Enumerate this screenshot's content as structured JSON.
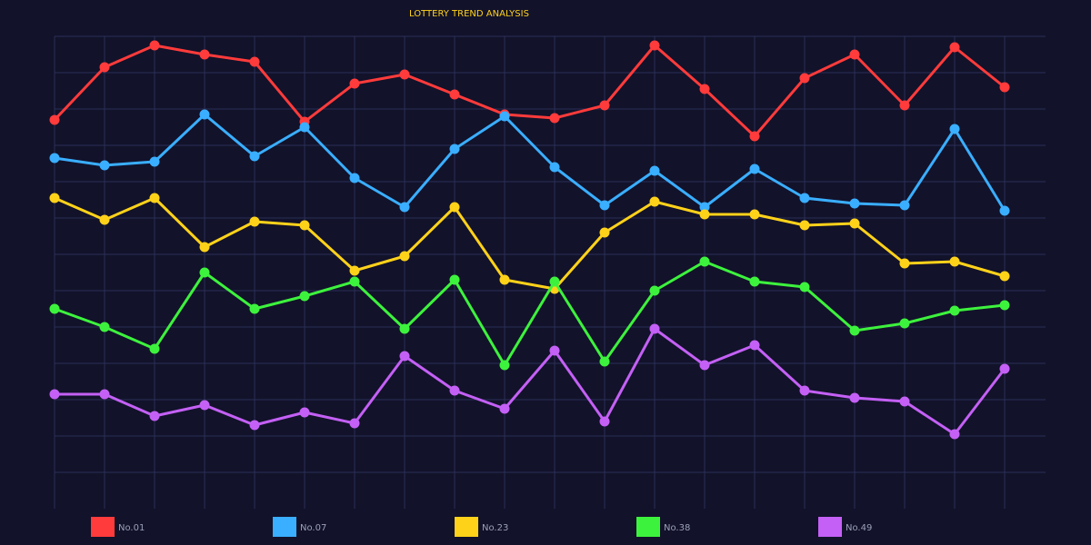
{
  "chart_data": {
    "type": "line",
    "title": "LOTTERY TREND ANALYSIS",
    "xlabel": "",
    "ylabel": "",
    "grid": true,
    "legend_position": "bottom",
    "x": [
      1,
      2,
      3,
      4,
      5,
      6,
      7,
      8,
      9,
      10,
      11,
      12,
      13,
      14,
      15,
      16,
      17,
      18,
      19,
      20
    ],
    "ylim": [
      0,
      13
    ],
    "series": [
      {
        "name": "No.01",
        "color": "#ff3b3b",
        "values": [
          10.7,
          12.15,
          12.75,
          12.5,
          12.3,
          10.65,
          11.7,
          11.95,
          11.4,
          10.85,
          10.75,
          11.1,
          12.75,
          11.55,
          10.25,
          11.85,
          12.5,
          11.1,
          12.7,
          11.6
        ]
      },
      {
        "name": "No.07",
        "color": "#3aaeff",
        "values": [
          9.65,
          9.45,
          9.55,
          10.85,
          9.7,
          10.5,
          9.1,
          8.3,
          9.9,
          10.8,
          9.4,
          8.35,
          9.3,
          8.3,
          9.35,
          8.55,
          8.4,
          8.35,
          10.45,
          8.2
        ]
      },
      {
        "name": "No.23",
        "color": "#ffd21a",
        "values": [
          8.55,
          7.95,
          8.55,
          7.2,
          7.9,
          7.8,
          6.55,
          6.95,
          8.3,
          6.3,
          6.05,
          7.6,
          8.45,
          8.1,
          8.1,
          7.8,
          7.85,
          6.75,
          6.8,
          6.4
        ]
      },
      {
        "name": "No.38",
        "color": "#3df23d",
        "values": [
          5.5,
          5.0,
          4.4,
          6.5,
          5.5,
          5.85,
          6.25,
          4.95,
          6.3,
          3.95,
          6.25,
          4.05,
          6.0,
          6.8,
          6.25,
          6.1,
          4.9,
          5.1,
          5.45,
          5.6
        ]
      },
      {
        "name": "No.49",
        "color": "#c460f5",
        "values": [
          3.15,
          3.15,
          2.55,
          2.85,
          2.3,
          2.65,
          2.35,
          4.2,
          3.25,
          2.75,
          4.35,
          2.4,
          4.95,
          3.95,
          4.5,
          3.25,
          3.05,
          2.95,
          2.05,
          3.85
        ]
      }
    ]
  }
}
